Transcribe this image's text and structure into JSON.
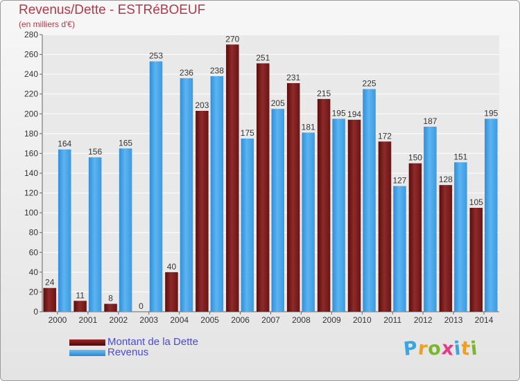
{
  "chart_data": {
    "type": "bar",
    "title": "Revenus/Dette - ESTRéBOEUF",
    "subtitle": "(en milliers d'€)",
    "categories": [
      "2000",
      "2001",
      "2002",
      "2003",
      "2004",
      "2005",
      "2006",
      "2007",
      "2008",
      "2009",
      "2010",
      "2011",
      "2012",
      "2013",
      "2014"
    ],
    "series": [
      {
        "name": "Montant de la Dette",
        "color": "#7a1a1a",
        "values": [
          24,
          11,
          8,
          0,
          40,
          203,
          270,
          251,
          231,
          215,
          194,
          172,
          150,
          128,
          105
        ]
      },
      {
        "name": "Revenus",
        "color": "#3d9fe6",
        "values": [
          164,
          156,
          165,
          253,
          236,
          238,
          175,
          205,
          181,
          195,
          225,
          127,
          187,
          151,
          195
        ]
      }
    ],
    "ylim": [
      0,
      280
    ],
    "yticks": [
      0,
      20,
      40,
      60,
      80,
      100,
      120,
      140,
      160,
      180,
      200,
      220,
      240,
      260,
      280
    ],
    "grid": true,
    "legend_position": "bottom-left"
  },
  "logo": {
    "text": "Proxiti",
    "letters": [
      {
        "ch": "P",
        "color": "#3aa6e0"
      },
      {
        "ch": "r",
        "color": "#f0a020"
      },
      {
        "ch": "o",
        "color": "#7ab828"
      },
      {
        "ch": "x",
        "color": "#e83a8a"
      },
      {
        "ch": "i",
        "color": "#3aa6e0"
      },
      {
        "ch": "t",
        "color": "#f0a020"
      },
      {
        "ch": "i",
        "color": "#7ab828"
      }
    ]
  }
}
